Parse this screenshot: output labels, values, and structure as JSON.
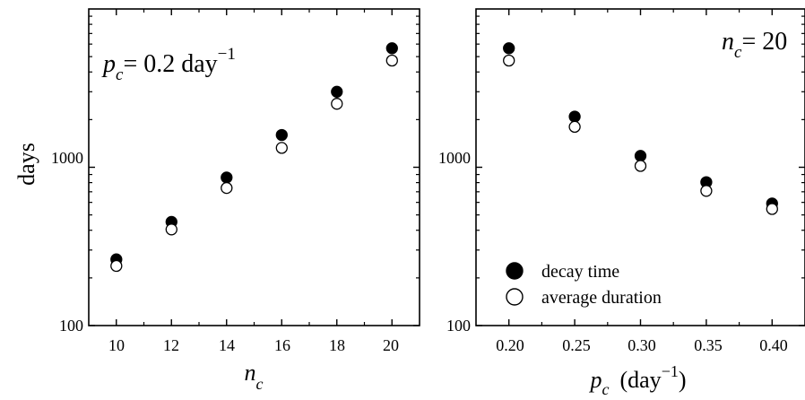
{
  "chart_data": [
    {
      "type": "scatter",
      "scale": {
        "y": "log"
      },
      "ylim": [
        100,
        10000
      ],
      "xlim": [
        9,
        21
      ],
      "xticks": [
        10,
        12,
        14,
        16,
        18,
        20
      ],
      "xtick_labels": [
        "10",
        "12",
        "14",
        "16",
        "18",
        "20"
      ],
      "yticks": [
        100,
        1000
      ],
      "ytick_labels": [
        "100",
        "1000"
      ],
      "ylabel": "days",
      "xlabel": {
        "main": "n",
        "sub": "c"
      },
      "annotation": {
        "p": "p",
        "sub": "c",
        "rest": "= 0.2 day",
        "sup": "−1"
      },
      "series": [
        {
          "name": "decay time",
          "marker": "filled-circle",
          "x": [
            10,
            12,
            14,
            16,
            18,
            20
          ],
          "y": [
            262,
            452,
            862,
            1600,
            3000,
            5650
          ]
        },
        {
          "name": "average duration",
          "marker": "open-circle",
          "x": [
            10,
            12,
            14,
            16,
            18,
            20
          ],
          "y": [
            238,
            405,
            740,
            1325,
            2520,
            4720
          ]
        }
      ]
    },
    {
      "type": "scatter",
      "scale": {
        "y": "log"
      },
      "ylim": [
        100,
        10000
      ],
      "xlim": [
        0.175,
        0.425
      ],
      "xticks": [
        0.2,
        0.25,
        0.3,
        0.35,
        0.4
      ],
      "xtick_labels": [
        "0.20",
        "0.25",
        "0.30",
        "0.35",
        "0.40"
      ],
      "yticks": [
        100,
        1000
      ],
      "ytick_labels": [
        "100",
        "1000"
      ],
      "xlabel": {
        "main": "p",
        "sub": "c",
        "unit_open": "(day",
        "unit_sup": "−1",
        "unit_close": ")"
      },
      "annotation": {
        "n": "n",
        "sub": "c",
        "rest": "= 20"
      },
      "legend": {
        "placement": "bottom-left",
        "entries": [
          "decay time",
          "average duration"
        ]
      },
      "series": [
        {
          "name": "decay time",
          "marker": "filled-circle",
          "x": [
            0.2,
            0.25,
            0.3,
            0.35,
            0.4
          ],
          "y": [
            5650,
            2090,
            1180,
            805,
            590
          ]
        },
        {
          "name": "average duration",
          "marker": "open-circle",
          "x": [
            0.2,
            0.25,
            0.3,
            0.35,
            0.4
          ],
          "y": [
            4720,
            1800,
            1020,
            710,
            545
          ]
        }
      ]
    }
  ]
}
